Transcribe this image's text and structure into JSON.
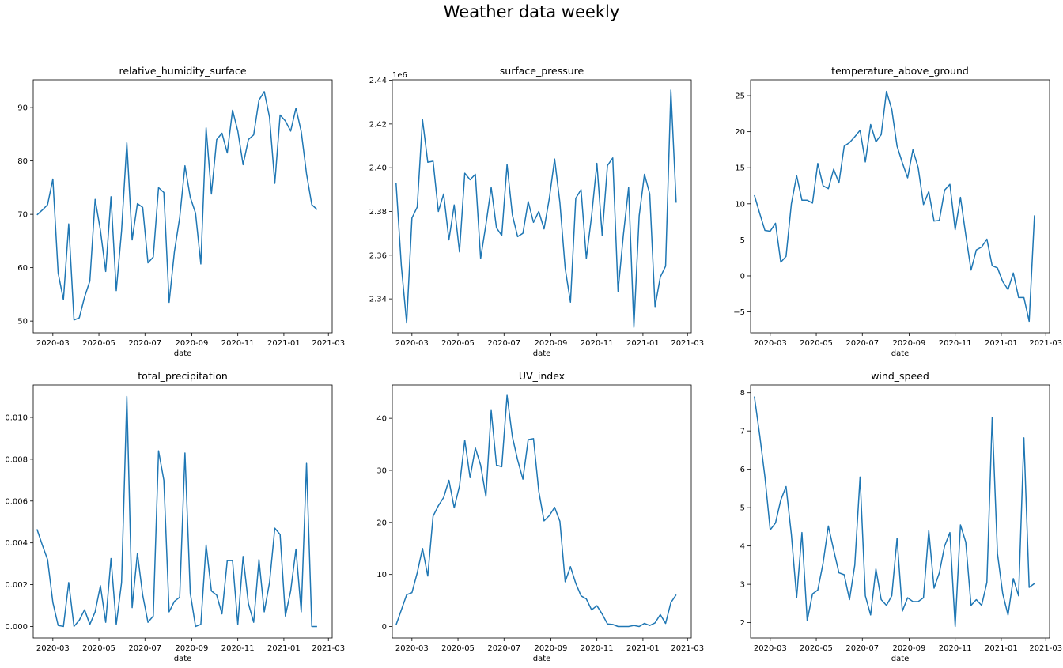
{
  "figure": {
    "title": "Weather data weekly"
  },
  "chart_data": [
    {
      "type": "line",
      "title": "relative_humidity_surface",
      "xlabel": "date",
      "ylabel": "",
      "xlim": [
        "2020-02-04",
        "2021-03-06"
      ],
      "ylim": [
        47.8,
        95.2
      ],
      "yticks": [
        50,
        60,
        70,
        80,
        90
      ],
      "ytick_labels": [
        "50",
        "60",
        "70",
        "80",
        "90"
      ],
      "y_offset_label": "",
      "xticks": [
        "2020-03-01",
        "2020-05-01",
        "2020-07-01",
        "2020-09-01",
        "2020-11-01",
        "2021-01-01",
        "2021-03-01"
      ],
      "xtick_labels": [
        "2020-03",
        "2020-05",
        "2020-07",
        "2020-09",
        "2020-11",
        "2021-01",
        "2021-03"
      ],
      "line_color": "#1f77b4",
      "start_date": "2020-02-09",
      "step_days": 7,
      "values": [
        69.9,
        70.8,
        71.8,
        76.6,
        59.0,
        54.0,
        68.2,
        50.2,
        50.6,
        54.5,
        57.5,
        72.8,
        67.0,
        59.3,
        73.3,
        55.7,
        66.9,
        83.4,
        65.2,
        72.0,
        71.3,
        60.9,
        62.0,
        75.0,
        74.1,
        53.5,
        63.0,
        69.4,
        79.1,
        73.2,
        70.2,
        60.7,
        86.2,
        73.8,
        84.0,
        85.2,
        81.5,
        89.5,
        85.6,
        79.3,
        84.0,
        84.9,
        91.4,
        93.0,
        88.2,
        75.8,
        88.6,
        87.5,
        85.6,
        89.9,
        85.5,
        77.6,
        71.8,
        70.9
      ]
    },
    {
      "type": "line",
      "title": "surface_pressure",
      "xlabel": "date",
      "ylabel": "",
      "xlim": [
        "2020-02-04",
        "2021-03-06"
      ],
      "ylim": [
        2.3245,
        2.4402
      ],
      "yticks": [
        2.34,
        2.36,
        2.38,
        2.4,
        2.42,
        2.44
      ],
      "ytick_labels": [
        "2.34",
        "2.36",
        "2.38",
        "2.40",
        "2.42",
        "2.44"
      ],
      "y_offset_label": "1e6",
      "xticks": [
        "2020-03-01",
        "2020-05-01",
        "2020-07-01",
        "2020-09-01",
        "2020-11-01",
        "2021-01-01",
        "2021-03-01"
      ],
      "xtick_labels": [
        "2020-03",
        "2020-05",
        "2020-07",
        "2020-09",
        "2020-11",
        "2021-01",
        "2021-03"
      ],
      "line_color": "#1f77b4",
      "start_date": "2020-02-09",
      "step_days": 7,
      "values": [
        2.393,
        2.355,
        2.329,
        2.377,
        2.382,
        2.422,
        2.4025,
        2.403,
        2.38,
        2.388,
        2.367,
        2.383,
        2.3615,
        2.3975,
        2.3945,
        2.397,
        2.3585,
        2.374,
        2.391,
        2.3725,
        2.369,
        2.4015,
        2.3785,
        2.3685,
        2.37,
        2.3845,
        2.375,
        2.38,
        2.372,
        2.386,
        2.404,
        2.384,
        2.354,
        2.3385,
        2.386,
        2.39,
        2.3585,
        2.378,
        2.402,
        2.369,
        2.401,
        2.4045,
        2.3435,
        2.369,
        2.391,
        2.327,
        2.378,
        2.397,
        2.388,
        2.3365,
        2.35,
        2.355,
        2.4355,
        2.384
      ]
    },
    {
      "type": "line",
      "title": "temperature_above_ground",
      "xlabel": "date",
      "ylabel": "",
      "xlim": [
        "2020-02-04",
        "2021-03-06"
      ],
      "ylim": [
        -7.9,
        27.2
      ],
      "yticks": [
        -5,
        0,
        5,
        10,
        15,
        20,
        25
      ],
      "ytick_labels": [
        "−5",
        "0",
        "5",
        "10",
        "15",
        "20",
        "25"
      ],
      "y_offset_label": "",
      "xticks": [
        "2020-03-01",
        "2020-05-01",
        "2020-07-01",
        "2020-09-01",
        "2020-11-01",
        "2021-01-01",
        "2021-03-01"
      ],
      "xtick_labels": [
        "2020-03",
        "2020-05",
        "2020-07",
        "2020-09",
        "2020-11",
        "2021-01",
        "2021-03"
      ],
      "line_color": "#1f77b4",
      "start_date": "2020-02-09",
      "step_days": 7,
      "values": [
        11.2,
        8.7,
        6.3,
        6.2,
        7.3,
        1.9,
        2.7,
        10.0,
        13.9,
        10.5,
        10.5,
        10.1,
        15.6,
        12.5,
        12.1,
        14.8,
        12.9,
        18.0,
        18.5,
        19.3,
        20.2,
        15.8,
        21.0,
        18.6,
        19.6,
        25.6,
        23.1,
        18.0,
        15.7,
        13.6,
        17.5,
        15.0,
        9.9,
        11.7,
        7.6,
        7.7,
        11.9,
        12.7,
        6.4,
        10.9,
        5.7,
        0.8,
        3.6,
        4.0,
        5.1,
        1.4,
        1.1,
        -0.8,
        -1.9,
        0.4,
        -3.0,
        -3.0,
        -6.3,
        8.4
      ]
    },
    {
      "type": "line",
      "title": "total_precipitation",
      "xlabel": "date",
      "ylabel": "",
      "xlim": [
        "2020-02-04",
        "2021-03-06"
      ],
      "ylim": [
        -0.00055,
        0.01155
      ],
      "yticks": [
        0,
        0.002,
        0.004,
        0.006,
        0.008,
        0.01
      ],
      "ytick_labels": [
        "0.000",
        "0.002",
        "0.004",
        "0.006",
        "0.008",
        "0.010"
      ],
      "y_offset_label": "",
      "xticks": [
        "2020-03-01",
        "2020-05-01",
        "2020-07-01",
        "2020-09-01",
        "2020-11-01",
        "2021-01-01",
        "2021-03-01"
      ],
      "xtick_labels": [
        "2020-03",
        "2020-05",
        "2020-07",
        "2020-09",
        "2020-11",
        "2021-01",
        "2021-03"
      ],
      "line_color": "#1f77b4",
      "start_date": "2020-02-09",
      "step_days": 7,
      "values": [
        0.00465,
        0.0039,
        0.0032,
        0.00115,
        5e-05,
        0.0,
        0.0021,
        0.0,
        0.0003,
        0.0008,
        0.0001,
        0.0007,
        0.00195,
        0.0002,
        0.00325,
        0.0001,
        0.0021,
        0.011,
        0.0009,
        0.0035,
        0.0015,
        0.0002,
        0.0005,
        0.0084,
        0.007,
        0.0007,
        0.0012,
        0.0014,
        0.0083,
        0.0016,
        0.0,
        0.0001,
        0.0039,
        0.0017,
        0.0015,
        0.0006,
        0.00315,
        0.00315,
        0.0001,
        0.00335,
        0.0011,
        0.0002,
        0.0032,
        0.0007,
        0.0021,
        0.0047,
        0.0044,
        0.0005,
        0.0017,
        0.0037,
        0.0007,
        0.0078,
        0.0,
        0.0
      ]
    },
    {
      "type": "line",
      "title": "UV_index",
      "xlabel": "date",
      "ylabel": "",
      "xlim": [
        "2020-02-04",
        "2021-03-06"
      ],
      "ylim": [
        -2.2,
        46.4
      ],
      "yticks": [
        0,
        10,
        20,
        30,
        40
      ],
      "ytick_labels": [
        "0",
        "10",
        "20",
        "30",
        "40"
      ],
      "y_offset_label": "",
      "xticks": [
        "2020-03-01",
        "2020-05-01",
        "2020-07-01",
        "2020-09-01",
        "2020-11-01",
        "2021-01-01",
        "2021-03-01"
      ],
      "xtick_labels": [
        "2020-03",
        "2020-05",
        "2020-07",
        "2020-09",
        "2020-11",
        "2021-01",
        "2021-03"
      ],
      "line_color": "#1f77b4",
      "start_date": "2020-02-09",
      "step_days": 7,
      "values": [
        0.3,
        3.2,
        6.1,
        6.5,
        10.3,
        15.0,
        9.7,
        21.2,
        23.2,
        24.8,
        28.1,
        22.8,
        27.0,
        35.8,
        28.6,
        34.3,
        31.0,
        25.0,
        41.5,
        31.0,
        30.7,
        44.4,
        36.5,
        32.0,
        28.3,
        35.9,
        36.1,
        26.0,
        20.3,
        21.3,
        22.9,
        20.2,
        8.6,
        11.5,
        8.3,
        5.9,
        5.3,
        3.2,
        4.0,
        2.4,
        0.5,
        0.4,
        0.0,
        0.0,
        0.0,
        0.2,
        0.0,
        0.6,
        0.2,
        0.7,
        2.3,
        0.6,
        4.6,
        6.1
      ]
    },
    {
      "type": "line",
      "title": "wind_speed",
      "xlabel": "date",
      "ylabel": "",
      "xlim": [
        "2020-02-04",
        "2021-03-06"
      ],
      "ylim": [
        1.6,
        8.2
      ],
      "yticks": [
        2,
        3,
        4,
        5,
        6,
        7,
        8
      ],
      "ytick_labels": [
        "2",
        "3",
        "4",
        "5",
        "6",
        "7",
        "8"
      ],
      "y_offset_label": "",
      "xticks": [
        "2020-03-01",
        "2020-05-01",
        "2020-07-01",
        "2020-09-01",
        "2020-11-01",
        "2021-01-01",
        "2021-03-01"
      ],
      "xtick_labels": [
        "2020-03",
        "2020-05",
        "2020-07",
        "2020-09",
        "2020-11",
        "2021-01",
        "2021-03"
      ],
      "line_color": "#1f77b4",
      "start_date": "2020-02-09",
      "step_days": 7,
      "values": [
        7.9,
        6.9,
        5.8,
        4.42,
        4.6,
        5.2,
        5.55,
        4.3,
        2.65,
        4.35,
        2.05,
        2.75,
        2.85,
        3.55,
        4.52,
        3.9,
        3.3,
        3.25,
        2.6,
        3.5,
        5.8,
        2.7,
        2.2,
        3.4,
        2.6,
        2.45,
        2.7,
        4.2,
        2.3,
        2.65,
        2.55,
        2.55,
        2.65,
        4.4,
        2.9,
        3.3,
        4.0,
        4.35,
        1.9,
        4.55,
        4.1,
        2.45,
        2.6,
        2.45,
        3.05,
        7.35,
        3.8,
        2.75,
        2.2,
        3.15,
        2.7,
        6.82,
        2.92,
        3.02
      ]
    }
  ]
}
